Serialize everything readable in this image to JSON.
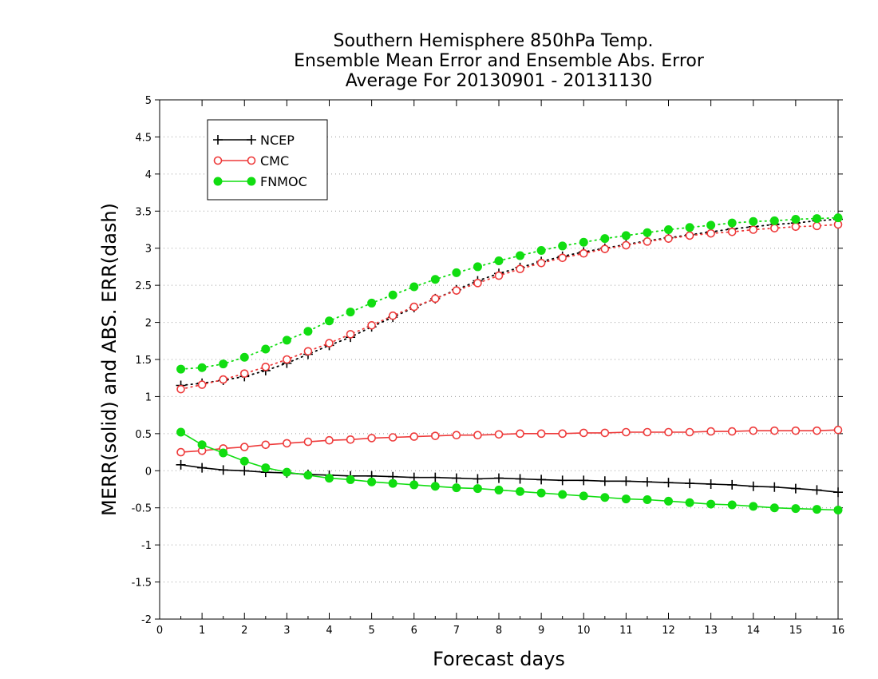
{
  "chart_data": {
    "type": "line",
    "title_lines": [
      "Southern Hemisphere 850hPa Temp.",
      "Ensemble Mean Error and Ensemble Abs. Error",
      "Average For 20130901 - 20131130"
    ],
    "xlabel": "Forecast days",
    "ylabel": "MERR(solid) and ABS. ERR(dash)",
    "xlim": [
      0,
      16
    ],
    "ylim": [
      -2,
      5
    ],
    "x_ticks": [
      "0",
      "1",
      "2",
      "3",
      "4",
      "5",
      "6",
      "7",
      "8",
      "9",
      "10",
      "11",
      "12",
      "13",
      "14",
      "15",
      "16"
    ],
    "y_ticks": [
      "5",
      "4.5",
      "4",
      "3.5",
      "3",
      "2.5",
      "2",
      "1.5",
      "1",
      "0.5",
      "0",
      "-0.5",
      "-1",
      "-1.5",
      "-2"
    ],
    "y_tick_values": [
      5,
      4.5,
      4,
      3.5,
      3,
      2.5,
      2,
      1.5,
      1,
      0.5,
      0,
      -0.5,
      -1,
      -1.5,
      -2
    ],
    "grid": "horizontal dotted",
    "legend_position": "top-left",
    "x": [
      0.5,
      1,
      1.5,
      2,
      2.5,
      3,
      3.5,
      4,
      4.5,
      5,
      5.5,
      6,
      6.5,
      7,
      7.5,
      8,
      8.5,
      9,
      9.5,
      10,
      10.5,
      11,
      11.5,
      12,
      12.5,
      13,
      13.5,
      14,
      14.5,
      15,
      15.5,
      16
    ],
    "series": [
      {
        "name": "NCEP",
        "color": "#000000",
        "marker": "plus",
        "merr": [
          0.08,
          0.04,
          0.01,
          0.0,
          -0.02,
          -0.03,
          -0.05,
          -0.06,
          -0.07,
          -0.07,
          -0.08,
          -0.09,
          -0.09,
          -0.1,
          -0.11,
          -0.1,
          -0.11,
          -0.12,
          -0.13,
          -0.13,
          -0.14,
          -0.14,
          -0.15,
          -0.16,
          -0.17,
          -0.18,
          -0.19,
          -0.21,
          -0.22,
          -0.24,
          -0.26,
          -0.29
        ],
        "abserr": [
          1.15,
          1.18,
          1.22,
          1.27,
          1.35,
          1.45,
          1.57,
          1.69,
          1.8,
          1.94,
          2.07,
          2.2,
          2.32,
          2.44,
          2.56,
          2.66,
          2.74,
          2.82,
          2.89,
          2.95,
          3.0,
          3.05,
          3.1,
          3.14,
          3.18,
          3.22,
          3.26,
          3.29,
          3.32,
          3.34,
          3.37,
          3.39
        ]
      },
      {
        "name": "CMC",
        "color": "#ee3a3a",
        "marker": "open-circle",
        "merr": [
          0.25,
          0.27,
          0.3,
          0.32,
          0.35,
          0.37,
          0.39,
          0.41,
          0.42,
          0.44,
          0.45,
          0.46,
          0.47,
          0.48,
          0.48,
          0.49,
          0.5,
          0.5,
          0.5,
          0.51,
          0.51,
          0.52,
          0.52,
          0.52,
          0.52,
          0.53,
          0.53,
          0.54,
          0.54,
          0.54,
          0.54,
          0.55
        ],
        "abserr": [
          1.1,
          1.16,
          1.23,
          1.31,
          1.4,
          1.5,
          1.61,
          1.72,
          1.84,
          1.96,
          2.09,
          2.21,
          2.32,
          2.43,
          2.53,
          2.63,
          2.72,
          2.8,
          2.87,
          2.93,
          2.99,
          3.04,
          3.09,
          3.13,
          3.17,
          3.2,
          3.22,
          3.25,
          3.27,
          3.29,
          3.3,
          3.32
        ]
      },
      {
        "name": "FNMOC",
        "color": "#11dd11",
        "marker": "filled-circle",
        "merr": [
          0.52,
          0.35,
          0.24,
          0.13,
          0.04,
          -0.02,
          -0.06,
          -0.1,
          -0.12,
          -0.15,
          -0.17,
          -0.19,
          -0.21,
          -0.23,
          -0.24,
          -0.26,
          -0.28,
          -0.3,
          -0.32,
          -0.34,
          -0.36,
          -0.38,
          -0.39,
          -0.41,
          -0.43,
          -0.45,
          -0.46,
          -0.48,
          -0.5,
          -0.51,
          -0.52,
          -0.53
        ],
        "abserr": [
          1.37,
          1.39,
          1.44,
          1.53,
          1.64,
          1.76,
          1.88,
          2.02,
          2.14,
          2.26,
          2.37,
          2.48,
          2.58,
          2.67,
          2.75,
          2.83,
          2.9,
          2.97,
          3.03,
          3.08,
          3.13,
          3.17,
          3.21,
          3.25,
          3.28,
          3.31,
          3.34,
          3.36,
          3.37,
          3.39,
          3.4,
          3.41
        ]
      }
    ]
  }
}
